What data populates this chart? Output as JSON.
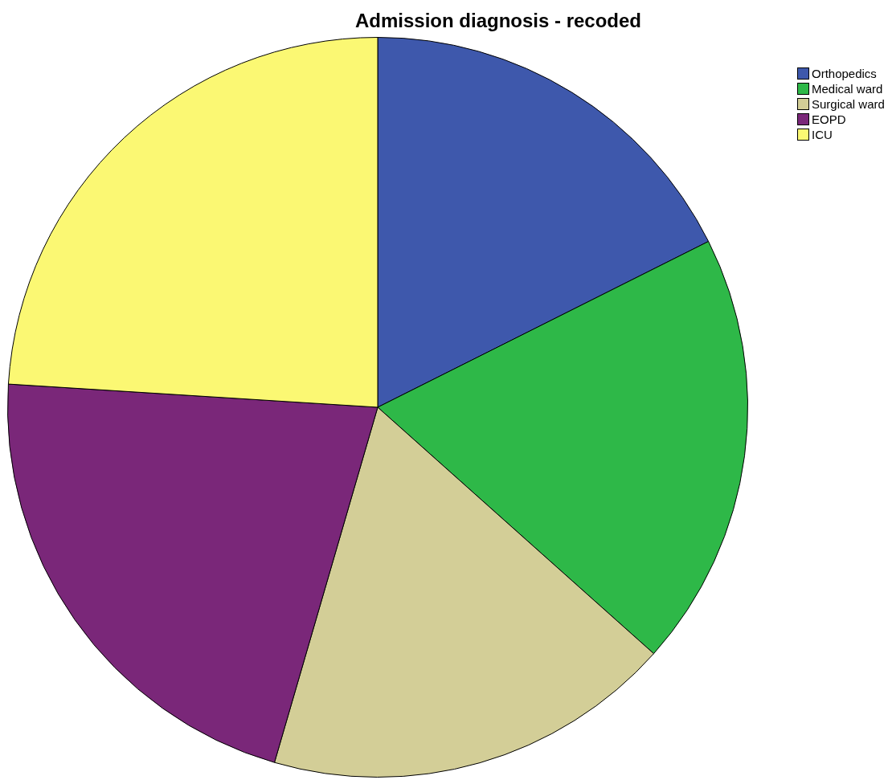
{
  "chart_data": {
    "type": "pie",
    "title": "Admission diagnosis - recoded",
    "categories": [
      "Orthopedics",
      "Medical ward",
      "Surgical ward",
      "EOPD",
      "ICU"
    ],
    "values": [
      17.6,
      19.0,
      17.9,
      21.5,
      24.0
    ],
    "colors": [
      "#3e58ac",
      "#2eb848",
      "#d3ce97",
      "#7a2779",
      "#fbf873"
    ],
    "legend": "top right"
  }
}
